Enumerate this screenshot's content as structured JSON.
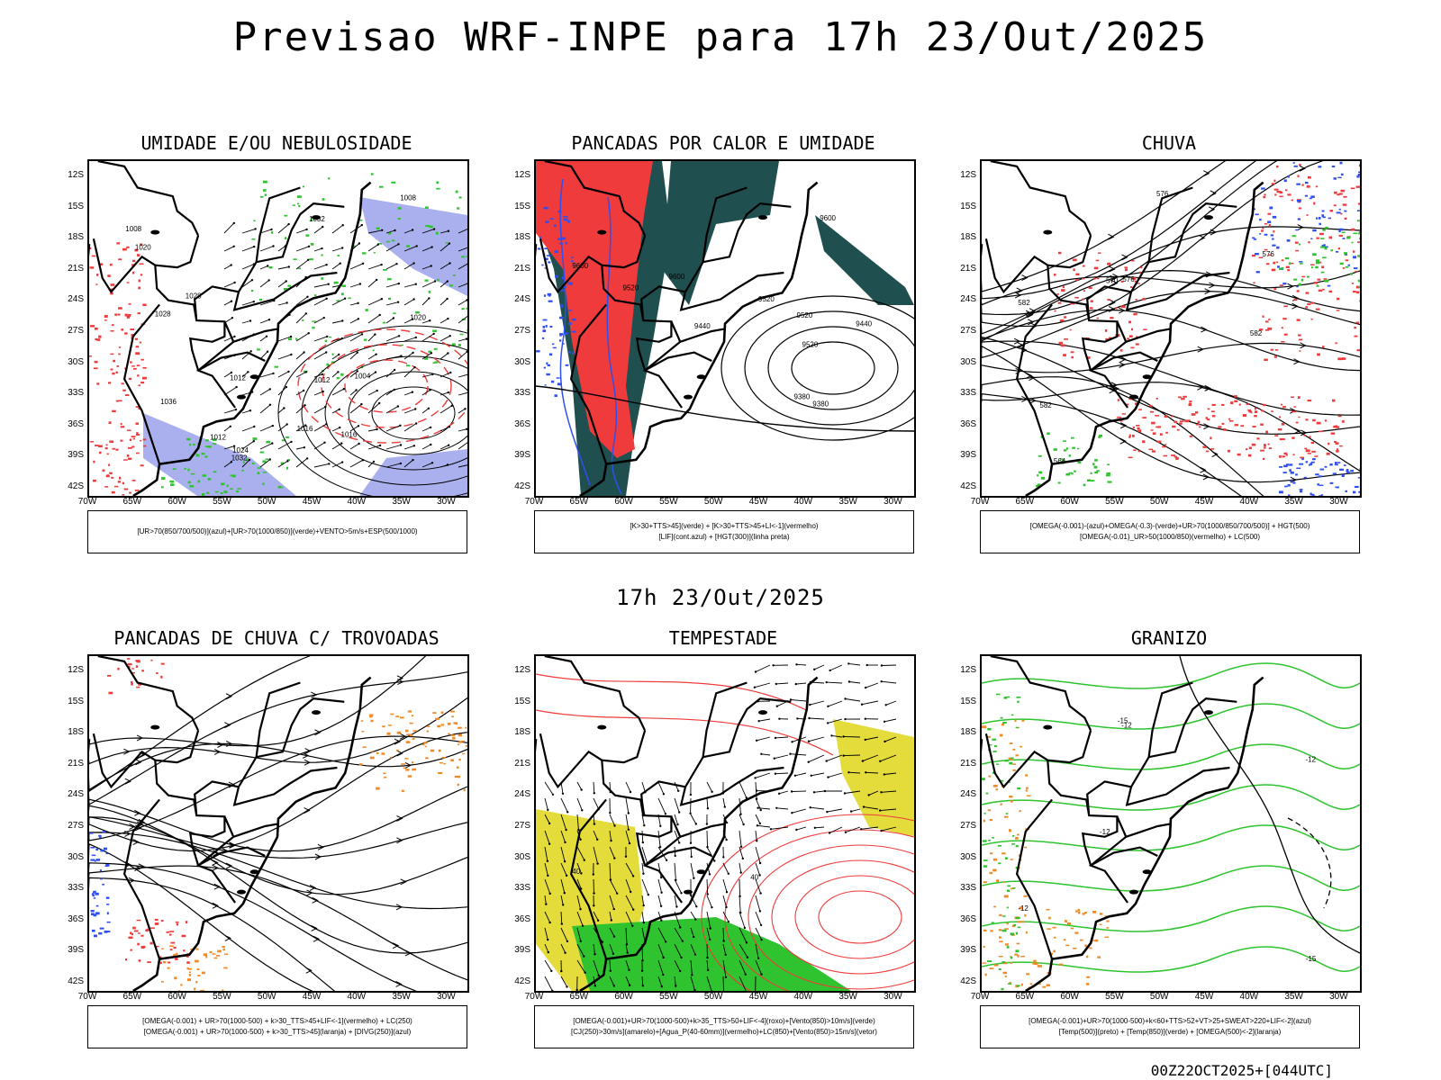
{
  "header": {
    "title": "Previsao WRF-INPE  para 17h 23/Out/2025",
    "subtitle": "17h 23/Out/2025",
    "footer": "00Z22OCT2025+[044UTC]"
  },
  "axes": {
    "lat_labels": [
      "12S",
      "15S",
      "18S",
      "21S",
      "24S",
      "27S",
      "30S",
      "33S",
      "36S",
      "39S",
      "42S"
    ],
    "lon_labels": [
      "70W",
      "65W",
      "60W",
      "55W",
      "50W",
      "45W",
      "40W",
      "35W",
      "30W"
    ]
  },
  "colors": {
    "red": "#ef3b3b",
    "green": "#2fc42f",
    "blue": "#2f4ff0",
    "lavender": "#aab0ee",
    "darkteal": "#1f4f4f",
    "yellow": "#e4dc3a",
    "orange": "#f08a24",
    "black": "#000000"
  },
  "panels": [
    {
      "id": "umidade",
      "title": "UMIDADE E/OU NEBULOSIDADE",
      "legend": [
        "[UR>70(850/700/500)](azul)+[UR>70(1000/850)](verde)+VENTO>5m/s+ESP(500/1000)"
      ],
      "contour_labels": [
        "1008",
        "1016",
        "1012",
        "1016",
        "1020",
        "1024",
        "1028",
        "1032",
        "1036",
        "1012",
        "1004",
        "1008",
        "1012",
        "1028",
        "1032",
        "1020"
      ]
    },
    {
      "id": "pancadas-calor",
      "title": "PANCADAS POR CALOR E UMIDADE",
      "legend": [
        "[K>30+TTS>45](verde) + [K>30+TTS>45+LI<-1](vermelho)",
        "[LIF](cont.azul) + [HGT(300)](linha preta)"
      ],
      "contour_labels": [
        "9600",
        "9600",
        "9600",
        "9520",
        "9520",
        "9520",
        "9440",
        "9440",
        "9380",
        "9380",
        "9520"
      ]
    },
    {
      "id": "chuva",
      "title": "CHUVA",
      "legend": [
        "[OMEGA(-0.001)-(azul)+OMEGA(-0.3)-(verde)+UR>70(1000/850/700/500)] + HGT(500)",
        "[OMEGA(-0.01)_UR>50(1000/850)(vermelho) + LC(500)"
      ],
      "contour_labels": [
        "582",
        "582",
        "576",
        "576",
        "570",
        "564",
        "582",
        "576"
      ]
    },
    {
      "id": "pancadas-trovoadas",
      "title": "PANCADAS DE CHUVA C/ TROVOADAS",
      "legend": [
        "[OMEGA(-0.001) + UR>70(1000-500) + k>30_TTS>45+LIF<-1](vermelho) + LC(250)",
        "[OMEGA(-0.001) + UR>70(1000-500) + k>30_TTS>45](laranja) + [DIVG(250)](azul)"
      ],
      "contour_labels": []
    },
    {
      "id": "tempestade",
      "title": "TEMPESTADE",
      "legend": [
        "[OMEGA(-0.001)+UR>70(1000-500)+k>35_TTS>50+LIF<-4](roxo)+[Vento(850)>10m/s](verde)",
        "[CJ(250)>30m/s](amarelo)+[Agua_P(40-60mm)](vermelho)+LC(850)+[Vento(850)>15m/s](vetor)"
      ],
      "contour_labels": [
        "40",
        "40"
      ]
    },
    {
      "id": "granizo",
      "title": "GRANIZO",
      "legend": [
        "[OMEGA(-0.001)+UR>70(1000-500)+k<60+TTS>52+VT>25+SWEAT>220+LIF<-2](azul)",
        "[Temp(500)](preto) + [Temp(850)](verde) + [OMEGA(500)<-2](laranja)"
      ],
      "contour_labels": [
        "-12",
        "-12",
        "-15",
        "-12",
        "-15",
        "-12"
      ]
    }
  ]
}
